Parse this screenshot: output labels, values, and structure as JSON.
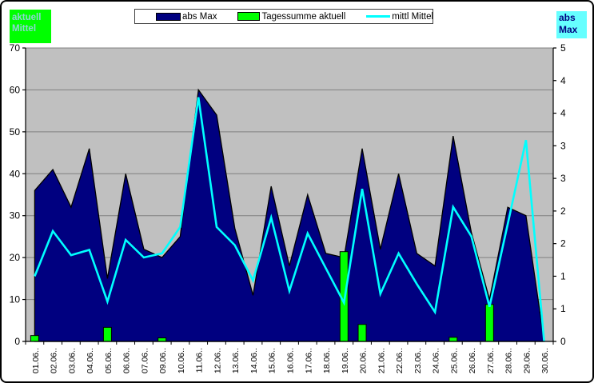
{
  "left_axis_title_box": {
    "line1": "aktuell",
    "line2": "Mittel",
    "bg": "#00FF00",
    "text_color": "#8FD4D4"
  },
  "right_axis_title_box": {
    "line1": "abs",
    "line2": "Max",
    "bg": "#66FFFF",
    "text_color": "#000080"
  },
  "legend": {
    "items": [
      {
        "label": "abs Max",
        "swatch": "area",
        "color": "#000080"
      },
      {
        "label": "Tagessumme aktuell",
        "swatch": "bar",
        "color": "#00FF00"
      },
      {
        "label": "mittl Mittel",
        "swatch": "line",
        "color": "#00FFFF"
      }
    ]
  },
  "chart_data": {
    "type": "combo-area-bar-line",
    "categories": [
      "01.06..",
      "02.06..",
      "03.06..",
      "04.06..",
      "05.06..",
      "06.06..",
      "07.06..",
      "09.06..",
      "10.06..",
      "11.06..",
      "12.06..",
      "13.06..",
      "14.06..",
      "15.06..",
      "16.06..",
      "17.06..",
      "18.06..",
      "19.06..",
      "20.06..",
      "21.06..",
      "22.06..",
      "23.06..",
      "24.06..",
      "25.06..",
      "26.06..",
      "27.06..",
      "28.06..",
      "29.06..",
      "30.06.."
    ],
    "series": [
      {
        "name": "abs Max",
        "type": "area",
        "axis": "left",
        "color": "#000080",
        "outline": "#000000",
        "values": [
          36,
          41,
          32,
          46,
          15,
          40,
          22,
          20,
          25,
          60,
          54,
          27,
          11,
          37,
          18,
          35,
          21,
          20,
          46,
          22,
          40,
          21,
          18,
          49,
          26,
          10,
          32,
          30,
          0
        ]
      },
      {
        "name": "Tagessumme aktuell",
        "type": "bar",
        "axis": "right",
        "color": "#00FF00",
        "outline": "#000000",
        "values": [
          0.1,
          0,
          0,
          0,
          0.24,
          0,
          0,
          0.06,
          0,
          0,
          0,
          0,
          0,
          0,
          0,
          0,
          0,
          1.53,
          0.29,
          0,
          0,
          0,
          0,
          0.07,
          0,
          0.63,
          0,
          0,
          0
        ]
      },
      {
        "name": "mittl Mittel",
        "type": "line",
        "axis": "right",
        "color": "#00FFFF",
        "values": [
          1.11,
          1.88,
          1.47,
          1.56,
          0.68,
          1.73,
          1.43,
          1.5,
          1.95,
          4.16,
          1.95,
          1.64,
          1.04,
          2.11,
          0.86,
          1.84,
          1.25,
          0.66,
          2.6,
          0.81,
          1.5,
          0.98,
          0.5,
          2.29,
          1.79,
          0.59,
          2.0,
          3.43,
          0.0
        ]
      }
    ],
    "left_axis": {
      "min": 0,
      "max": 70,
      "tick_step": 10,
      "tick_labels": [
        "70",
        "60",
        "50",
        "40",
        "30",
        "20",
        "10",
        "0"
      ]
    },
    "right_axis": {
      "min": 0,
      "max": 5,
      "tick_labels": [
        "5",
        "4",
        "4",
        "3",
        "3",
        "2",
        "2",
        "1",
        "1",
        "0"
      ]
    },
    "plot_bg": "#C0C0C0",
    "gridline_color": "#808080",
    "grid": true,
    "legend_position": "top"
  }
}
